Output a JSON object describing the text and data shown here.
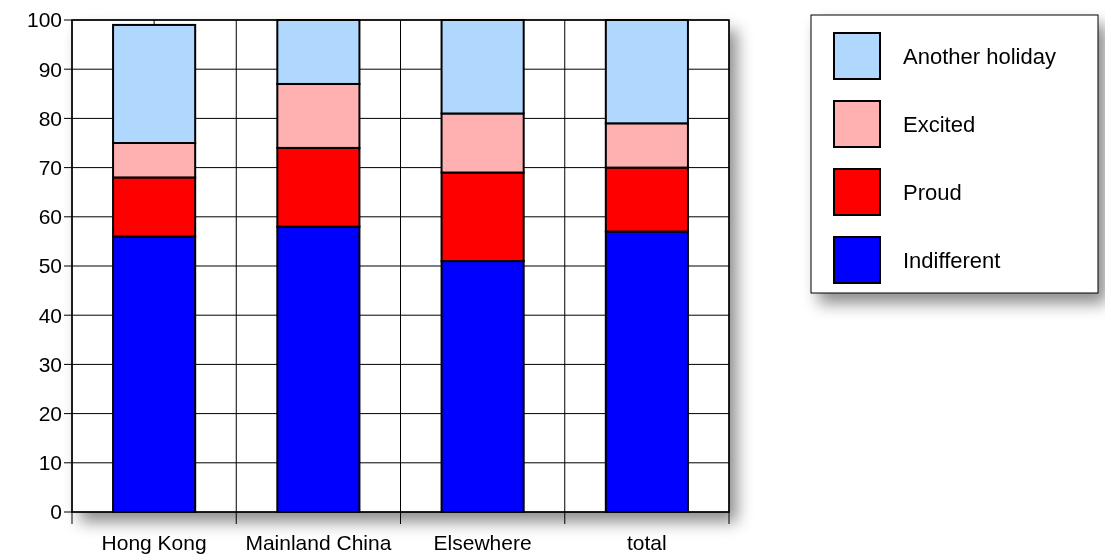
{
  "chart_data": {
    "type": "bar",
    "stacked": true,
    "categories": [
      "Hong Kong",
      "Mainland China",
      "Elsewhere",
      "total"
    ],
    "series": [
      {
        "name": "Indifferent",
        "color": "#0000ff",
        "values": [
          56,
          58,
          51,
          57
        ]
      },
      {
        "name": "Proud",
        "color": "#ff0000",
        "values": [
          12,
          16,
          18,
          13
        ]
      },
      {
        "name": "Excited",
        "color": "#ffb0b0",
        "values": [
          7,
          13,
          12,
          9
        ]
      },
      {
        "name": "Another holiday",
        "color": "#b0d8ff",
        "values": [
          24,
          13,
          19,
          21
        ]
      }
    ],
    "ylim": [
      0,
      100
    ],
    "yticks": [
      0,
      10,
      20,
      30,
      40,
      50,
      60,
      70,
      80,
      90,
      100
    ],
    "grid": true,
    "legend": "top right"
  }
}
